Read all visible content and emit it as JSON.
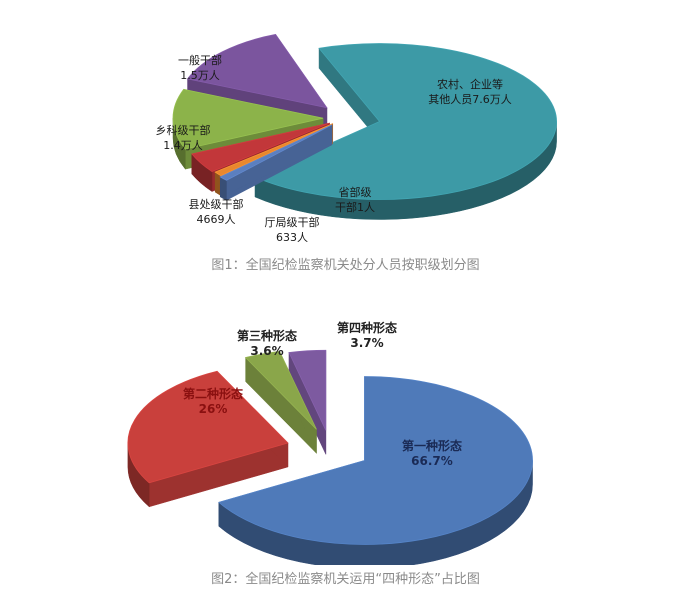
{
  "chart_data": [
    {
      "type": "pie",
      "title": "图1：全国纪检监察机关处分人员按职级划分图",
      "slices": [
        {
          "label_lines": [
            "农村、企业等",
            "其他人员7.6万人"
          ],
          "value": 76000,
          "unit": "人",
          "color": "#3d9aa6"
        },
        {
          "label_lines": [
            "省部级",
            "干部1人"
          ],
          "value": 1,
          "unit": "人",
          "color": "#5b7fbf"
        },
        {
          "label_lines": [
            "厅局级干部",
            "633人"
          ],
          "value": 633,
          "unit": "人",
          "color": "#e8882e"
        },
        {
          "label_lines": [
            "县处级干部",
            "4669人"
          ],
          "value": 4669,
          "unit": "人",
          "color": "#c2373a"
        },
        {
          "label_lines": [
            "乡科级干部",
            "1.4万人"
          ],
          "value": 14000,
          "unit": "人",
          "color": "#8cb34a"
        },
        {
          "label_lines": [
            "一般干部",
            "1.5万人"
          ],
          "value": 15000,
          "unit": "人",
          "color": "#7b559e"
        }
      ]
    },
    {
      "type": "pie",
      "title": "图2：全国纪检监察机关运用“四种形态”占比图",
      "slices": [
        {
          "label_lines": [
            "第一种形态",
            "66.7%"
          ],
          "value": 66.7,
          "unit": "%",
          "color": "#4f7ab9"
        },
        {
          "label_lines": [
            "第二种形态",
            "26%"
          ],
          "value": 26,
          "unit": "%",
          "color": "#c9403c"
        },
        {
          "label_lines": [
            "第三种形态",
            "3.6%"
          ],
          "value": 3.6,
          "unit": "%",
          "color": "#8aa64a"
        },
        {
          "label_lines": [
            "第四种形态",
            "3.7%"
          ],
          "value": 3.7,
          "unit": "%",
          "color": "#7d5aa0"
        }
      ]
    }
  ]
}
